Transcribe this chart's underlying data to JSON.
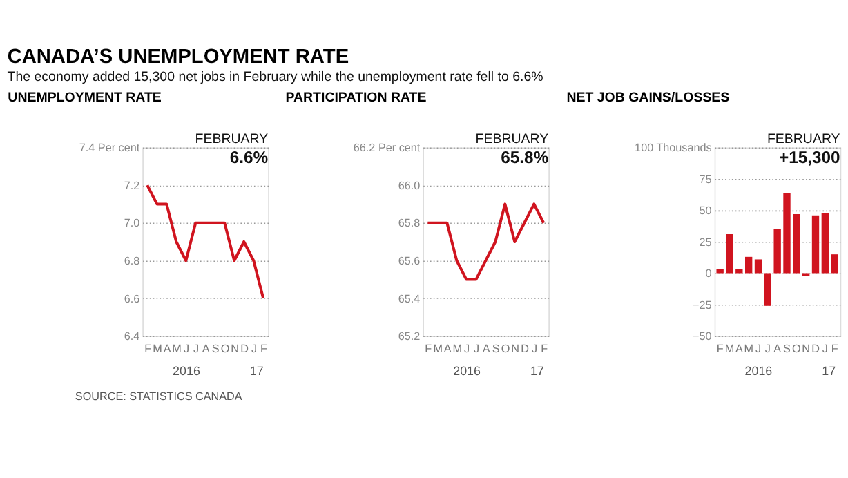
{
  "chart_data": [
    {
      "type": "line",
      "title": "UNEMPLOYMENT RATE",
      "categories": [
        "F",
        "M",
        "A",
        "M",
        "J",
        "J",
        "A",
        "S",
        "O",
        "N",
        "D",
        "J",
        "F"
      ],
      "series": [
        {
          "color": "#d0141f",
          "values": [
            7.2,
            7.1,
            7.1,
            6.9,
            6.8,
            7.0,
            7.0,
            7.0,
            7.0,
            6.8,
            6.9,
            6.8,
            6.6
          ]
        }
      ],
      "ylim": [
        6.4,
        7.4
      ],
      "yticks": [
        6.4,
        6.6,
        6.8,
        {
          "value": 7,
          "label": "7.0"
        },
        7.2,
        {
          "value": 7.4,
          "label": "7.4 Per cent"
        }
      ],
      "grid": "y",
      "line_style": "solid",
      "annotations": [
        "CANADA’S UNEMPLOYMENT RATE",
        "The economy added 15,300 net jobs in February while the unemployment rate fell to 6.6%",
        "SOURCE: STATISTICS CANADA",
        "FEBRUARY",
        "6.6%",
        "2016",
        "17"
      ]
    },
    {
      "type": "line",
      "title": "PARTICIPATION RATE",
      "categories": [
        "F",
        "M",
        "A",
        "M",
        "J",
        "J",
        "A",
        "S",
        "O",
        "N",
        "D",
        "J",
        "F"
      ],
      "series": [
        {
          "color": "#d0141f",
          "values": [
            65.8,
            65.8,
            65.8,
            65.6,
            65.5,
            65.5,
            65.6,
            65.7,
            65.9,
            65.7,
            65.8,
            65.9,
            65.8
          ]
        }
      ],
      "ylim": [
        65.2,
        66.2
      ],
      "yticks": [
        65.2,
        65.4,
        65.6,
        65.8,
        {
          "value": 66,
          "label": "66.0"
        },
        {
          "value": 66.2,
          "label": "66.2 Per cent"
        }
      ],
      "grid": "y",
      "line_style": "solid",
      "annotations": [
        "FEBRUARY",
        "65.8%",
        "2016",
        "17"
      ]
    },
    {
      "type": "bar",
      "title": "NET JOB GAINS/LOSSES",
      "categories": [
        "F",
        "M",
        "A",
        "M",
        "J",
        "J",
        "A",
        "S",
        "O",
        "N",
        "D",
        "J",
        "F"
      ],
      "series": [
        {
          "color": "#d0141f",
          "values": [
            3,
            31,
            3,
            13,
            11,
            -26,
            35,
            64,
            47,
            -2,
            46,
            48,
            15
          ]
        }
      ],
      "ylim": [
        -50,
        100
      ],
      "yticks": [
        -50,
        -25,
        0,
        25,
        50,
        75,
        {
          "value": 100,
          "label": "100 Thousands"
        }
      ],
      "grid": "y",
      "annotations": [
        "FEBRUARY",
        "+15,300",
        "2016",
        "17"
      ]
    }
  ]
}
